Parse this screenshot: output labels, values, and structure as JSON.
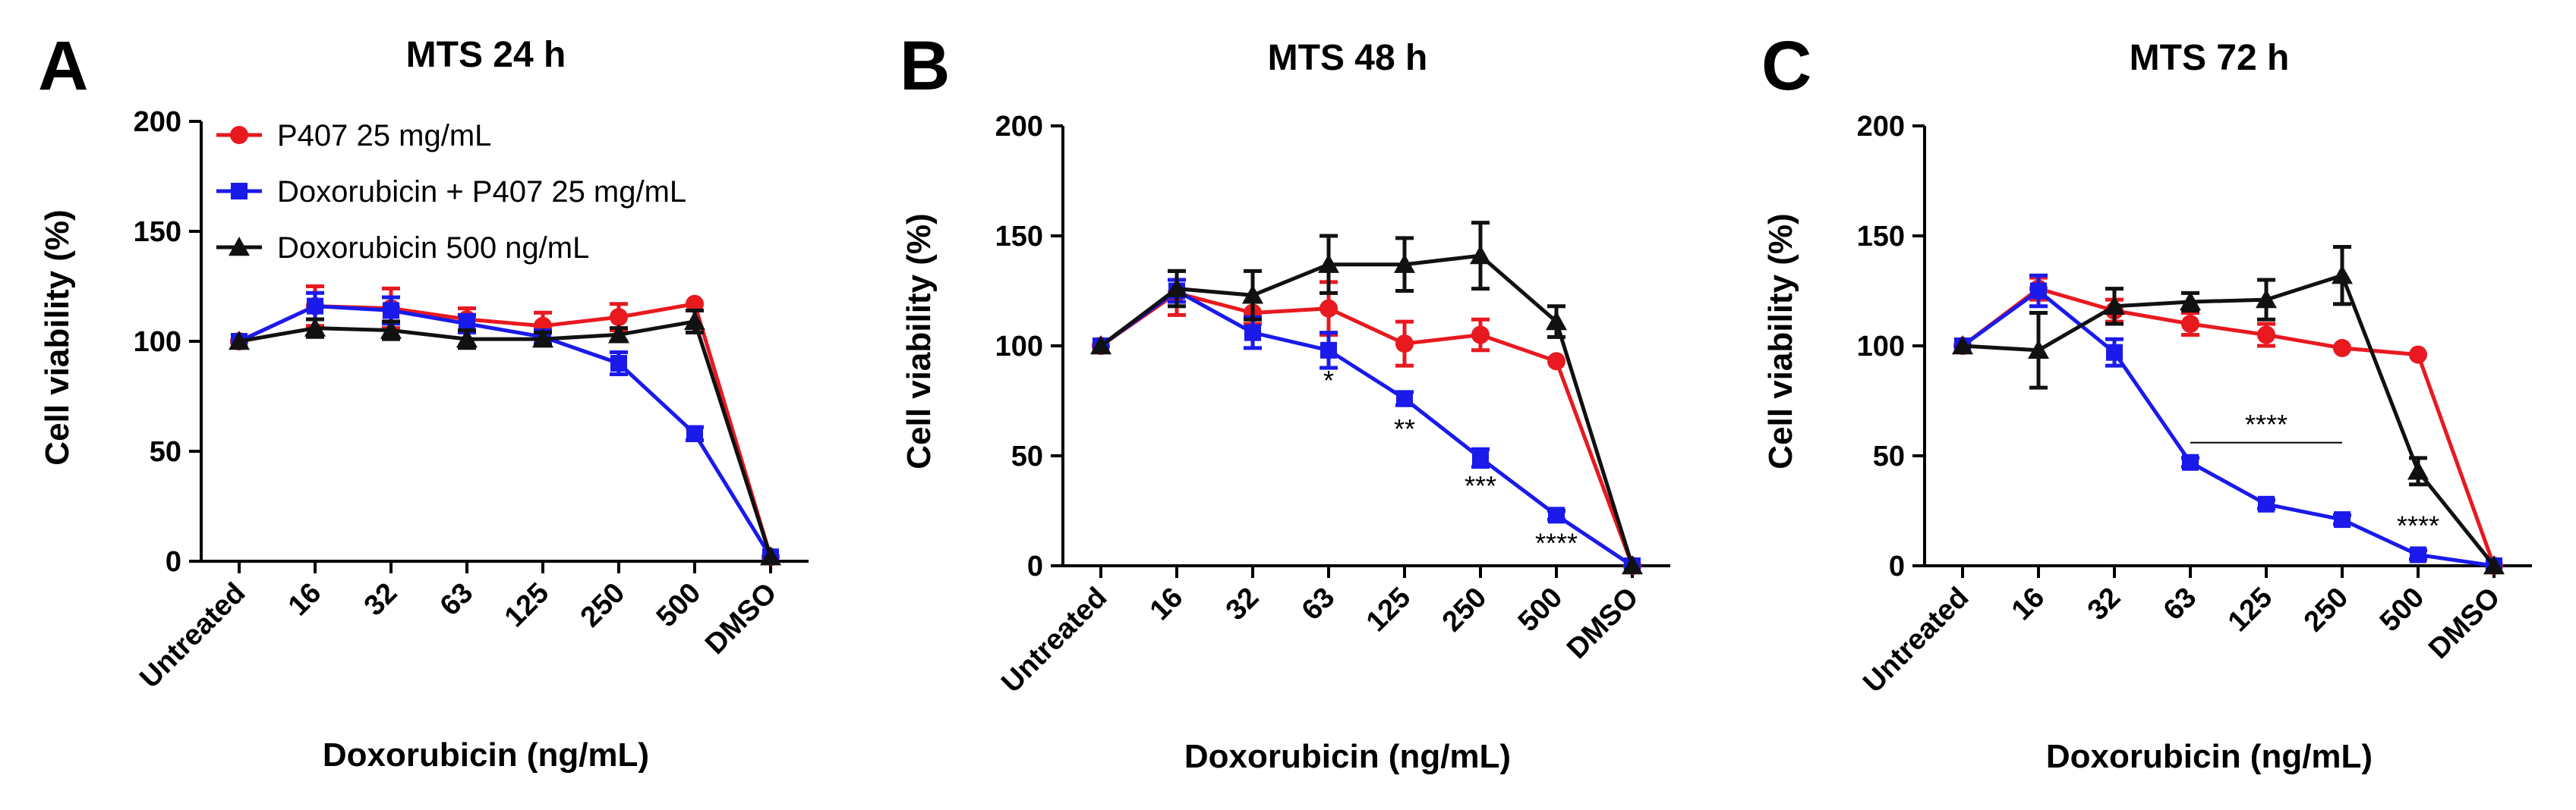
{
  "colors": {
    "P407 25 mg/mL": "#e8191f",
    "Doxorubicin + P407 25 mg/mL": "#1a1aeb",
    "Doxorubicin 500 ng/mL": "#111111"
  },
  "chart_data": [
    {
      "panel": "A",
      "type": "line",
      "title": "MTS 24 h",
      "xlabel": "Doxorubicin (ng/mL)",
      "ylabel": "Cell viability (%)",
      "ylim": [
        0,
        200
      ],
      "yticks": [
        0,
        50,
        100,
        150,
        200
      ],
      "categories": [
        "Untreated",
        "16",
        "32",
        "63",
        "125",
        "250",
        "500",
        "DMSO"
      ],
      "legend": [
        "P407 25 mg/mL",
        "Doxorubicin + P407 25 mg/mL",
        "Doxorubicin 500 ng/mL"
      ],
      "series": [
        {
          "name": "P407 25 mg/mL",
          "marker": "circle",
          "values": [
            100,
            116,
            115,
            110,
            107,
            111,
            117,
            2
          ],
          "errors": [
            0,
            9,
            9,
            5,
            6,
            6,
            0,
            0
          ]
        },
        {
          "name": "Doxorubicin + P407 25 mg/mL",
          "marker": "square",
          "values": [
            100,
            116,
            114,
            108,
            102,
            90,
            58,
            2
          ],
          "errors": [
            0,
            6,
            6,
            4,
            3,
            5,
            3,
            0
          ]
        },
        {
          "name": "Doxorubicin 500 ng/mL",
          "marker": "triangle",
          "values": [
            100,
            106,
            105,
            101,
            101,
            103,
            109,
            2
          ],
          "errors": [
            0,
            4,
            4,
            4,
            3,
            3,
            5,
            0
          ]
        }
      ],
      "annotations": []
    },
    {
      "panel": "B",
      "type": "line",
      "title": "MTS 48 h",
      "xlabel": "Doxorubicin (ng/mL)",
      "ylabel": "Cell viability (%)",
      "ylim": [
        0,
        200
      ],
      "yticks": [
        0,
        50,
        100,
        150,
        200
      ],
      "categories": [
        "Untreated",
        "16",
        "32",
        "63",
        "125",
        "250",
        "500",
        "DMSO"
      ],
      "legend": [],
      "series": [
        {
          "name": "P407 25 mg/mL",
          "marker": "circle",
          "values": [
            100,
            124,
            115,
            117,
            101,
            105,
            93,
            0
          ],
          "errors": [
            0,
            10,
            5,
            12,
            10,
            7,
            0,
            0
          ]
        },
        {
          "name": "Doxorubicin + P407 25 mg/mL",
          "marker": "square",
          "values": [
            100,
            125,
            106,
            98,
            76,
            49,
            23,
            0
          ],
          "errors": [
            0,
            5,
            7,
            8,
            3,
            4,
            2,
            0
          ]
        },
        {
          "name": "Doxorubicin 500 ng/mL",
          "marker": "triangle",
          "values": [
            100,
            126,
            123,
            137,
            137,
            141,
            111,
            0
          ],
          "errors": [
            0,
            8,
            11,
            13,
            12,
            15,
            7,
            0
          ]
        }
      ],
      "annotations": [
        {
          "text": "*",
          "x": "63",
          "y": 80
        },
        {
          "text": "**",
          "x": "125",
          "y": 58
        },
        {
          "text": "***",
          "x": "250",
          "y": 32
        },
        {
          "text": "****",
          "x": "500",
          "y": 6
        }
      ]
    },
    {
      "panel": "C",
      "type": "line",
      "title": "MTS 72 h",
      "xlabel": "Doxorubicin (ng/mL)",
      "ylabel": "Cell viability (%)",
      "ylim": [
        0,
        200
      ],
      "yticks": [
        0,
        50,
        100,
        150,
        200
      ],
      "categories": [
        "Untreated",
        "16",
        "32",
        "63",
        "125",
        "250",
        "500",
        "DMSO"
      ],
      "legend": [],
      "series": [
        {
          "name": "P407 25 mg/mL",
          "marker": "circle",
          "values": [
            100,
            126,
            116,
            110,
            105,
            99,
            96,
            0
          ],
          "errors": [
            0,
            5,
            5,
            5,
            5,
            0,
            0,
            0
          ]
        },
        {
          "name": "Doxorubicin + P407 25 mg/mL",
          "marker": "square",
          "values": [
            100,
            125,
            97,
            47,
            28,
            21,
            5,
            0
          ],
          "errors": [
            0,
            7,
            6,
            2,
            2,
            2,
            2,
            0
          ]
        },
        {
          "name": "Doxorubicin 500 ng/mL",
          "marker": "triangle",
          "values": [
            100,
            98,
            118,
            120,
            121,
            132,
            43,
            0
          ],
          "errors": [
            0,
            17,
            8,
            4,
            9,
            13,
            6,
            0
          ]
        }
      ],
      "annotations": [
        {
          "text": "****",
          "x": "125",
          "y": 60,
          "bracket": [
            "63",
            "250"
          ],
          "bracket_y": 56
        },
        {
          "text": "****",
          "x": "500",
          "y": 14
        }
      ]
    }
  ]
}
